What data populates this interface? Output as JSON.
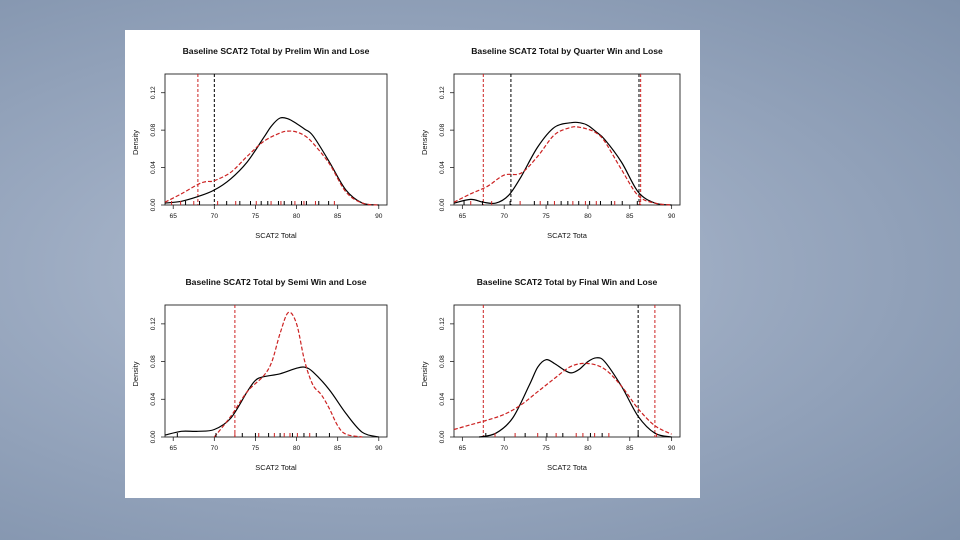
{
  "slide": {
    "background": "#9aa9c0",
    "panel_color": "#ffffff"
  },
  "series_colors": {
    "Win": "#000000",
    "Lose": "#cc2222"
  },
  "chart_data": [
    {
      "type": "line",
      "title": "Baseline SCAT2 Total by Prelim Win and Lose",
      "xlabel": "SCAT2 Total",
      "ylabel": "Density",
      "xlim": [
        64,
        91
      ],
      "ylim": [
        0,
        0.14
      ],
      "xticks": [
        "65",
        "70",
        "75",
        "80",
        "85",
        "90"
      ],
      "yticks": [
        "0.00",
        "0.04",
        "0.08",
        "0.12"
      ],
      "vlines": [
        {
          "x": 68,
          "series": "Lose"
        },
        {
          "x": 70,
          "series": "Win"
        }
      ],
      "series": [
        {
          "name": "Win",
          "color": "#000000",
          "dash": "",
          "x": [
            64,
            66,
            68,
            70,
            72,
            74,
            76,
            77,
            78,
            79,
            80,
            81,
            82,
            84,
            86,
            88,
            90
          ],
          "y": [
            0.002,
            0.004,
            0.009,
            0.016,
            0.028,
            0.046,
            0.072,
            0.085,
            0.093,
            0.092,
            0.087,
            0.081,
            0.074,
            0.046,
            0.016,
            0.002,
            0.0
          ]
        },
        {
          "name": "Lose",
          "color": "#cc2222",
          "dash": "4,2",
          "x": [
            64,
            66,
            68,
            69,
            70,
            72,
            74,
            76,
            78,
            79,
            80,
            81,
            82,
            84,
            86,
            88,
            90
          ],
          "y": [
            0.003,
            0.012,
            0.022,
            0.025,
            0.026,
            0.035,
            0.052,
            0.068,
            0.077,
            0.079,
            0.078,
            0.074,
            0.066,
            0.044,
            0.014,
            0.002,
            0.0
          ]
        }
      ],
      "rug": {
        "Win": [
          66.5,
          68.2,
          71.5,
          73.1,
          74.4,
          75.7,
          76.5,
          77.8,
          78.5,
          79.4,
          80.6,
          81.2,
          82.7,
          83.9
        ],
        "Lose": [
          64.8,
          65.9,
          67.5,
          70.4,
          72.6,
          75.1,
          76.9,
          78.1,
          79.8,
          80.9,
          82.3,
          84.6
        ]
      }
    },
    {
      "type": "line",
      "title": "Baseline SCAT2 Total by Quarter Win and Lose",
      "xlabel": "SCAT2 Tota",
      "ylabel": "Density",
      "xlim": [
        64,
        91
      ],
      "ylim": [
        0,
        0.14
      ],
      "xticks": [
        "65",
        "70",
        "75",
        "80",
        "85",
        "90"
      ],
      "yticks": [
        "0.00",
        "0.04",
        "0.08",
        "0.12"
      ],
      "vlines": [
        {
          "x": 67.5,
          "series": "Lose"
        },
        {
          "x": 70.8,
          "series": "Win"
        },
        {
          "x": 86.1,
          "series": "Win"
        },
        {
          "x": 86.3,
          "series": "Lose"
        }
      ],
      "series": [
        {
          "name": "Win",
          "color": "#000000",
          "dash": "",
          "x": [
            64,
            66,
            67.5,
            69,
            70.5,
            72,
            74,
            76,
            78,
            79,
            80,
            81,
            82,
            84,
            86,
            88,
            90
          ],
          "y": [
            0.002,
            0.006,
            0.003,
            0.002,
            0.01,
            0.03,
            0.062,
            0.083,
            0.088,
            0.088,
            0.085,
            0.078,
            0.07,
            0.046,
            0.014,
            0.002,
            0.0
          ]
        },
        {
          "name": "Lose",
          "color": "#cc2222",
          "dash": "4,2",
          "x": [
            64,
            66,
            68,
            70,
            72,
            74,
            76,
            78,
            79,
            80,
            81,
            82,
            84,
            86,
            88,
            90
          ],
          "y": [
            0.003,
            0.012,
            0.02,
            0.032,
            0.034,
            0.052,
            0.075,
            0.083,
            0.083,
            0.081,
            0.077,
            0.068,
            0.038,
            0.01,
            0.002,
            0.0
          ]
        }
      ],
      "rug": {
        "Win": [
          65.2,
          67.4,
          70.7,
          73.6,
          75.2,
          76.8,
          77.6,
          78.9,
          80.2,
          81.5,
          82.8,
          84.1,
          85.9
        ],
        "Lose": [
          66.0,
          68.5,
          71.9,
          74.3,
          76.0,
          78.2,
          79.7,
          81.0,
          83.2,
          86.2
        ]
      }
    },
    {
      "type": "line",
      "title": "Baseline SCAT2 Total by Semi Win and Lose",
      "xlabel": "SCAT2 Total",
      "ylabel": "Density",
      "xlim": [
        64,
        91
      ],
      "ylim": [
        0,
        0.14
      ],
      "xticks": [
        "65",
        "70",
        "75",
        "80",
        "85",
        "90"
      ],
      "yticks": [
        "0.00",
        "0.04",
        "0.08",
        "0.12"
      ],
      "vlines": [
        {
          "x": 72.5,
          "series": "Lose"
        }
      ],
      "series": [
        {
          "name": "Win",
          "color": "#000000",
          "dash": "",
          "x": [
            64,
            66,
            68,
            70,
            72,
            74,
            75,
            76,
            78,
            80,
            81,
            82,
            84,
            86,
            88,
            90
          ],
          "y": [
            0.002,
            0.006,
            0.006,
            0.008,
            0.02,
            0.048,
            0.06,
            0.064,
            0.067,
            0.073,
            0.074,
            0.069,
            0.05,
            0.025,
            0.005,
            0.0
          ]
        },
        {
          "name": "Lose",
          "color": "#cc2222",
          "dash": "4,2",
          "x": [
            70,
            72,
            74,
            76,
            77,
            78,
            79,
            80,
            81,
            82,
            83,
            84,
            85,
            86,
            88
          ],
          "y": [
            0.0,
            0.022,
            0.048,
            0.065,
            0.08,
            0.11,
            0.132,
            0.12,
            0.08,
            0.055,
            0.045,
            0.03,
            0.012,
            0.003,
            0.0
          ]
        }
      ],
      "rug": {
        "Win": [
          65.5,
          70.2,
          73.4,
          75.0,
          76.6,
          78.0,
          79.5,
          80.9,
          82.4,
          84.0
        ],
        "Lose": [
          72.5,
          75.4,
          77.3,
          78.5,
          79.2,
          80.1,
          81.6
        ]
      }
    },
    {
      "type": "line",
      "title": "Baseline SCAT2 Total by Final Win and Lose",
      "xlabel": "SCAT2 Tota",
      "ylabel": "Density",
      "xlim": [
        64,
        91
      ],
      "ylim": [
        0,
        0.14
      ],
      "xticks": [
        "65",
        "70",
        "75",
        "80",
        "85",
        "90"
      ],
      "yticks": [
        "0.00",
        "0.04",
        "0.08",
        "0.12"
      ],
      "vlines": [
        {
          "x": 67.5,
          "series": "Lose"
        },
        {
          "x": 86.0,
          "series": "Win"
        },
        {
          "x": 88.0,
          "series": "Lose"
        }
      ],
      "series": [
        {
          "name": "Win",
          "color": "#000000",
          "dash": "",
          "x": [
            67,
            69,
            71,
            73,
            74,
            75,
            76,
            77,
            78,
            79,
            80,
            81,
            82,
            84,
            86,
            88,
            90
          ],
          "y": [
            0.0,
            0.004,
            0.02,
            0.055,
            0.074,
            0.082,
            0.078,
            0.072,
            0.068,
            0.072,
            0.08,
            0.084,
            0.08,
            0.054,
            0.022,
            0.004,
            0.0
          ]
        },
        {
          "name": "Lose",
          "color": "#cc2222",
          "dash": "4,2",
          "x": [
            64,
            66,
            68,
            70,
            72,
            74,
            76,
            78,
            80,
            82,
            84,
            86,
            88,
            90
          ],
          "y": [
            0.008,
            0.013,
            0.018,
            0.024,
            0.034,
            0.048,
            0.062,
            0.075,
            0.078,
            0.072,
            0.054,
            0.03,
            0.012,
            0.003
          ]
        }
      ],
      "rug": {
        "Win": [
          67.8,
          72.5,
          75.1,
          77.0,
          80.3,
          81.7,
          86.0
        ],
        "Lose": [
          68.9,
          71.3,
          74.0,
          76.2,
          78.6,
          79.4,
          80.8,
          82.5,
          88.2
        ]
      }
    }
  ]
}
